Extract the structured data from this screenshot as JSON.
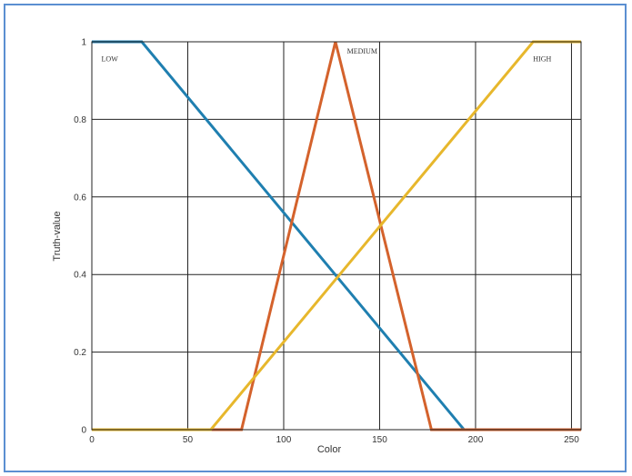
{
  "chart_data": {
    "type": "line",
    "title": "",
    "xlabel": "Color",
    "ylabel": "Truth-value",
    "xlim": [
      0,
      255
    ],
    "ylim": [
      0,
      1
    ],
    "xticks": [
      0,
      50,
      100,
      150,
      200,
      250
    ],
    "yticks": [
      0,
      0.2,
      0.4,
      0.6,
      0.8,
      1
    ],
    "ytick_labels": [
      "0",
      "0.2",
      "0.4",
      "0.6",
      "0.8",
      "1"
    ],
    "grid": true,
    "series": [
      {
        "name": "LOW",
        "color": "#1f7fb0",
        "x": [
          0,
          26,
          194,
          255
        ],
        "y": [
          1,
          1,
          0,
          0
        ],
        "label_x": 5,
        "label_y": 0.95
      },
      {
        "name": "MEDIUM",
        "color": "#d4622c",
        "x": [
          0,
          78,
          127,
          177,
          255
        ],
        "y": [
          0,
          0,
          1,
          0,
          0
        ],
        "label_x": 133,
        "label_y": 0.97
      },
      {
        "name": "HIGH",
        "color": "#e7b72c",
        "x": [
          0,
          62,
          230,
          255
        ],
        "y": [
          0,
          0,
          1,
          1
        ],
        "label_x": 230,
        "label_y": 0.95
      }
    ]
  }
}
